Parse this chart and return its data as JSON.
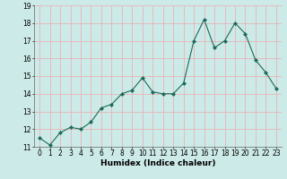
{
  "x": [
    0,
    1,
    2,
    3,
    4,
    5,
    6,
    7,
    8,
    9,
    10,
    11,
    12,
    13,
    14,
    15,
    16,
    17,
    18,
    19,
    20,
    21,
    22,
    23
  ],
  "y": [
    11.5,
    11.1,
    11.8,
    12.1,
    12.0,
    12.4,
    13.2,
    13.4,
    14.0,
    14.2,
    14.9,
    14.1,
    14.0,
    14.0,
    14.6,
    17.0,
    18.2,
    16.6,
    17.0,
    18.0,
    17.4,
    15.9,
    15.2,
    14.3
  ],
  "line_color": "#1a6b5a",
  "marker": "D",
  "marker_size": 2,
  "bg_color": "#cceae7",
  "grid_color": "#e8b4b8",
  "xlabel": "Humidex (Indice chaleur)",
  "ylim": [
    11,
    19
  ],
  "xlim": [
    -0.5,
    23.5
  ],
  "yticks": [
    11,
    12,
    13,
    14,
    15,
    16,
    17,
    18,
    19
  ],
  "xticks": [
    0,
    1,
    2,
    3,
    4,
    5,
    6,
    7,
    8,
    9,
    10,
    11,
    12,
    13,
    14,
    15,
    16,
    17,
    18,
    19,
    20,
    21,
    22,
    23
  ],
  "label_fontsize": 6.5,
  "tick_fontsize": 5.5
}
